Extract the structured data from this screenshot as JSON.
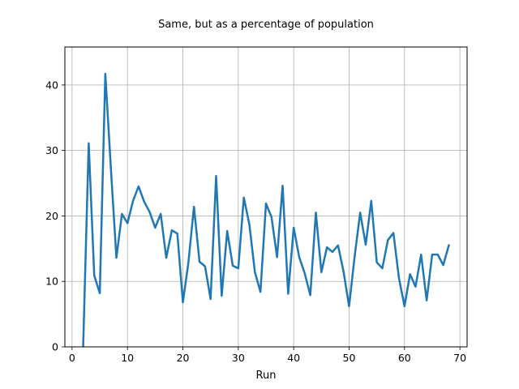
{
  "chart_data": {
    "type": "line",
    "title": "Same, but as a percentage of population",
    "xlabel": "Run",
    "ylabel": "",
    "xlim": [
      -1.3,
      71.3
    ],
    "ylim": [
      0,
      45.8
    ],
    "xticks": [
      0,
      10,
      20,
      30,
      40,
      50,
      60,
      70
    ],
    "yticks": [
      0,
      10,
      20,
      30,
      40
    ],
    "grid": true,
    "line_color": "#1f77b4",
    "series": [
      {
        "x": [
          2,
          3,
          4,
          5,
          6,
          7,
          8,
          9,
          10,
          11,
          12,
          13,
          14,
          15,
          16,
          17,
          18,
          19,
          20,
          21,
          22,
          23,
          24,
          25,
          26,
          27,
          28,
          29,
          30,
          31,
          32,
          33,
          34,
          35,
          36,
          37,
          38,
          39,
          40,
          41,
          42,
          43,
          44,
          45,
          46,
          47,
          48,
          49,
          50,
          51,
          52,
          53,
          54,
          55,
          56,
          57,
          58,
          59,
          60,
          61,
          62,
          63,
          64,
          65,
          66,
          67,
          68
        ],
        "y": [
          0,
          31.1,
          10.9,
          8.2,
          41.7,
          27.3,
          13.6,
          20.3,
          18.9,
          22.3,
          24.5,
          22.2,
          20.6,
          18.2,
          20.3,
          13.6,
          17.8,
          17.3,
          6.8,
          12.9,
          21.4,
          13,
          12.3,
          7.3,
          26.1,
          7.8,
          17.7,
          12.4,
          12,
          22.8,
          18.7,
          11.4,
          8.4,
          21.9,
          19.8,
          13.7,
          24.6,
          8.1,
          18.2,
          13.7,
          11.2,
          7.9,
          20.5,
          11.4,
          15.2,
          14.5,
          15.5,
          11.5,
          6.2,
          13.8,
          20.5,
          15.6,
          22.3,
          12.9,
          12,
          16.3,
          17.4,
          10.5,
          6.2,
          11.1,
          9.2,
          14.1,
          7.1,
          14.1,
          14.1,
          12.5,
          15.5
        ]
      }
    ]
  }
}
